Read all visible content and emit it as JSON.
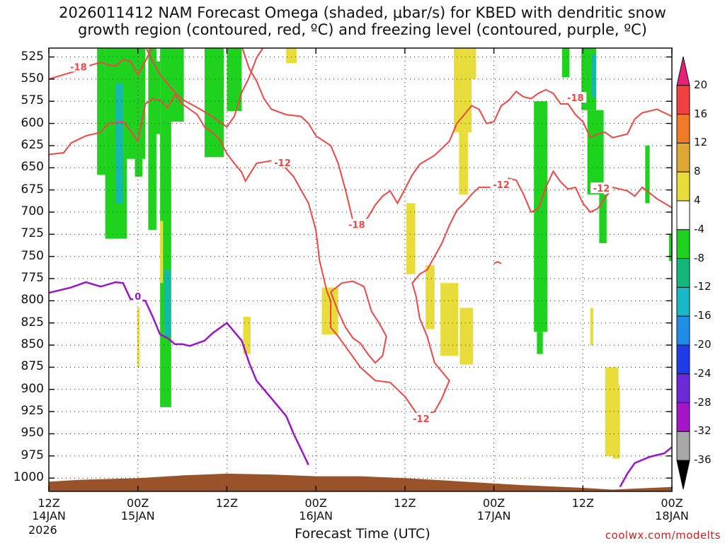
{
  "title": {
    "line1": "2026011412 NAM Forecast Omega (shaded, μbar/s) for KBED with dendritic snow",
    "line2": "growth region (contoured, red, ºC) and freezing level (contoured, purple, ºC)"
  },
  "xlabel": "Forecast Time (UTC)",
  "credit": "coolwx.com/modelts",
  "year": "2026",
  "colors": {
    "dgz": "#ef4646",
    "freezing": "#9a14c8",
    "terrain": "#9a522a",
    "up_light": "#1ed21e",
    "up_strong": "#15b8b0",
    "down_weak": "#e8dc3a"
  },
  "chart_data": {
    "type": "time-height cross-section",
    "x_range_hours": [
      0,
      84
    ],
    "y_range_hPa": [
      1015,
      515
    ],
    "yticks_hPa": [
      525,
      550,
      575,
      600,
      625,
      650,
      675,
      700,
      725,
      750,
      775,
      800,
      825,
      850,
      875,
      900,
      925,
      950,
      975,
      1000
    ],
    "xticks": [
      {
        "h": 0,
        "top": "12Z",
        "bottom": "14JAN"
      },
      {
        "h": 12,
        "top": "00Z",
        "bottom": "15JAN"
      },
      {
        "h": 24,
        "top": "12Z",
        "bottom": ""
      },
      {
        "h": 36,
        "top": "00Z",
        "bottom": "16JAN"
      },
      {
        "h": 48,
        "top": "12Z",
        "bottom": ""
      },
      {
        "h": 60,
        "top": "00Z",
        "bottom": "17JAN"
      },
      {
        "h": 72,
        "top": "12Z",
        "bottom": ""
      },
      {
        "h": 84,
        "top": "00Z",
        "bottom": "18JAN"
      }
    ],
    "colorbar": {
      "labels": [
        "20",
        "16",
        "12",
        "8",
        "4",
        "-4",
        "-8",
        "-12",
        "-16",
        "-20",
        "-24",
        "-28",
        "-32",
        "-36"
      ],
      "colors": [
        "#e8207a",
        "#f04040",
        "#f07a28",
        "#e0a830",
        "#e8dc3a",
        "#ffffff",
        "#1ed21e",
        "#12b87a",
        "#17b8c8",
        "#1e8ee8",
        "#1e3ce8",
        "#6a28d8",
        "#a514c8",
        "#a8a8a8",
        "#000000"
      ]
    },
    "contour_labels": [
      {
        "text": "-18",
        "h": 4.0,
        "p": 536
      },
      {
        "text": "-12",
        "h": 31.5,
        "p": 644
      },
      {
        "text": "-18",
        "h": 41.5,
        "p": 714
      },
      {
        "text": "-12",
        "h": 50.2,
        "p": 933
      },
      {
        "text": "-12",
        "h": 61.0,
        "p": 669
      },
      {
        "text": "-18",
        "h": 71.0,
        "p": 571
      },
      {
        "text": "-12",
        "h": 74.5,
        "p": 673
      },
      {
        "text": "0",
        "h": 12.0,
        "p": 795
      }
    ],
    "terrain_p": [
      [
        0,
        1004
      ],
      [
        4,
        1002
      ],
      [
        12,
        1000
      ],
      [
        18,
        997
      ],
      [
        24,
        995
      ],
      [
        30,
        996
      ],
      [
        36,
        998
      ],
      [
        42,
        998
      ],
      [
        48,
        1000
      ],
      [
        56,
        1004
      ],
      [
        64,
        1008
      ],
      [
        72,
        1011
      ],
      [
        76,
        1013
      ],
      [
        84,
        1010
      ]
    ],
    "freezing_level": [
      [
        [
          0,
          791
        ],
        [
          3,
          785
        ],
        [
          5,
          779
        ],
        [
          7,
          784
        ],
        [
          9,
          779
        ],
        [
          10,
          780
        ],
        [
          11,
          798
        ],
        [
          13,
          800
        ],
        [
          14,
          818
        ],
        [
          15,
          838
        ],
        [
          16,
          842
        ],
        [
          17,
          849
        ],
        [
          18,
          849
        ],
        [
          19,
          851
        ],
        [
          21,
          845
        ],
        [
          22,
          837
        ],
        [
          24,
          825
        ],
        [
          26,
          845
        ],
        [
          27,
          870
        ],
        [
          28,
          890
        ],
        [
          30,
          910
        ],
        [
          32,
          930
        ],
        [
          33,
          950
        ],
        [
          35,
          985
        ]
      ],
      [
        [
          77,
          1010
        ],
        [
          78,
          995
        ],
        [
          79,
          983
        ],
        [
          81,
          976
        ],
        [
          82,
          974
        ],
        [
          83,
          972
        ],
        [
          84,
          965
        ]
      ]
    ],
    "dgz_isotherms": [
      [
        [
          0,
          550
        ],
        [
          2,
          545
        ],
        [
          4,
          540
        ],
        [
          5,
          536
        ],
        [
          7,
          531
        ],
        [
          8,
          534
        ],
        [
          9,
          535
        ],
        [
          10,
          528
        ],
        [
          11,
          530
        ],
        [
          12,
          545
        ],
        [
          13,
          530
        ],
        [
          14,
          513
        ]
      ],
      [
        [
          0,
          635
        ],
        [
          2,
          633
        ],
        [
          3,
          622
        ],
        [
          5,
          614
        ],
        [
          7,
          610
        ],
        [
          8,
          600
        ],
        [
          10,
          598
        ],
        [
          11,
          608
        ],
        [
          12,
          620
        ],
        [
          13,
          578
        ],
        [
          14,
          572
        ],
        [
          15,
          574
        ],
        [
          16,
          582
        ],
        [
          17,
          568
        ],
        [
          18,
          578
        ],
        [
          20,
          590
        ],
        [
          21,
          604
        ],
        [
          22,
          610
        ],
        [
          23,
          618
        ],
        [
          24,
          634
        ],
        [
          25,
          645
        ],
        [
          26,
          655
        ],
        [
          26.5,
          665
        ],
        [
          28,
          645
        ],
        [
          30,
          642
        ],
        [
          31,
          642
        ],
        [
          33,
          660
        ],
        [
          35,
          690
        ],
        [
          36,
          720
        ],
        [
          36.5,
          755
        ],
        [
          37.5,
          790
        ],
        [
          38,
          800
        ],
        [
          38,
          830
        ],
        [
          39,
          840
        ],
        [
          42,
          875
        ],
        [
          44,
          890
        ],
        [
          46,
          892
        ],
        [
          48,
          908
        ],
        [
          50,
          932
        ],
        [
          52,
          925
        ],
        [
          53,
          910
        ],
        [
          54,
          890
        ],
        [
          52,
          870
        ],
        [
          51,
          840
        ],
        [
          50,
          820
        ],
        [
          49.5,
          795
        ],
        [
          49,
          780
        ],
        [
          50,
          770
        ],
        [
          51,
          765
        ],
        [
          52,
          750
        ],
        [
          53,
          735
        ],
        [
          54,
          715
        ],
        [
          55,
          698
        ],
        [
          56,
          690
        ],
        [
          57,
          680
        ],
        [
          58,
          672
        ],
        [
          60,
          672
        ],
        [
          61,
          674
        ],
        [
          62,
          662
        ],
        [
          63,
          664
        ],
        [
          64,
          680
        ],
        [
          65,
          700
        ],
        [
          66,
          696
        ],
        [
          67,
          672
        ],
        [
          68,
          654
        ],
        [
          69,
          666
        ],
        [
          70,
          674
        ],
        [
          71,
          672
        ],
        [
          72,
          690
        ],
        [
          73,
          700
        ],
        [
          74,
          696
        ],
        [
          75,
          684
        ],
        [
          76,
          672
        ],
        [
          78,
          676
        ],
        [
          79,
          682
        ],
        [
          80,
          672
        ],
        [
          82,
          685
        ],
        [
          84,
          695
        ]
      ],
      [
        [
          13,
          513
        ],
        [
          14,
          530
        ],
        [
          15,
          545
        ],
        [
          16,
          555
        ],
        [
          17,
          565
        ],
        [
          18,
          573
        ],
        [
          20,
          582
        ],
        [
          22,
          592
        ],
        [
          24,
          604
        ],
        [
          25,
          592
        ],
        [
          26,
          565
        ],
        [
          27,
          548
        ],
        [
          28,
          526
        ],
        [
          29,
          513
        ]
      ],
      [
        [
          26,
          513
        ],
        [
          27,
          538
        ],
        [
          28,
          552
        ],
        [
          29,
          572
        ],
        [
          30,
          584
        ],
        [
          32,
          590
        ],
        [
          34,
          592
        ],
        [
          35,
          600
        ],
        [
          36,
          614
        ],
        [
          38,
          625
        ],
        [
          39,
          645
        ],
        [
          40,
          675
        ],
        [
          41,
          710
        ],
        [
          42,
          716
        ],
        [
          43,
          706
        ],
        [
          44,
          692
        ],
        [
          45,
          682
        ],
        [
          46,
          676
        ],
        [
          47,
          690
        ],
        [
          48,
          674
        ],
        [
          49,
          658
        ],
        [
          50,
          646
        ],
        [
          52,
          636
        ],
        [
          54,
          620
        ],
        [
          55,
          600
        ],
        [
          56,
          590
        ],
        [
          57,
          580
        ],
        [
          58,
          584
        ],
        [
          59,
          600
        ],
        [
          60,
          598
        ],
        [
          61,
          580
        ],
        [
          62,
          574
        ],
        [
          63,
          564
        ],
        [
          64,
          570
        ],
        [
          65,
          572
        ],
        [
          66,
          566
        ],
        [
          67,
          562
        ],
        [
          68,
          566
        ],
        [
          69,
          578
        ],
        [
          70,
          578
        ],
        [
          71,
          590
        ],
        [
          72,
          598
        ],
        [
          73,
          616
        ],
        [
          74,
          612
        ],
        [
          75,
          610
        ],
        [
          76,
          616
        ],
        [
          78,
          612
        ],
        [
          79,
          595
        ],
        [
          80,
          588
        ],
        [
          82,
          584
        ],
        [
          84,
          592
        ]
      ],
      [
        [
          38,
          790
        ],
        [
          39,
          812
        ],
        [
          40,
          830
        ],
        [
          41,
          842
        ],
        [
          42,
          848
        ],
        [
          43,
          860
        ],
        [
          44,
          870
        ],
        [
          45,
          862
        ],
        [
          45.5,
          840
        ],
        [
          44.5,
          825
        ],
        [
          43.5,
          812
        ],
        [
          43,
          798
        ],
        [
          42.5,
          784
        ],
        [
          41,
          778
        ],
        [
          39.5,
          780
        ],
        [
          38,
          790
        ]
      ],
      [
        [
          60,
          758
        ],
        [
          60.5,
          756
        ],
        [
          61,
          758
        ]
      ]
    ],
    "shading": [
      {
        "level": "up_light",
        "h": [
          6.5,
          7.6
        ],
        "p": [
          510,
          658
        ]
      },
      {
        "level": "up_light",
        "h": [
          7.6,
          10.5
        ],
        "p": [
          510,
          730
        ]
      },
      {
        "level": "up_strong",
        "h": [
          9.0,
          10.0
        ],
        "p": [
          555,
          690
        ]
      },
      {
        "level": "up_light",
        "h": [
          10.0,
          13.0
        ],
        "p": [
          510,
          640
        ]
      },
      {
        "level": "up_light",
        "h": [
          11.6,
          12.6
        ],
        "p": [
          640,
          660
        ]
      },
      {
        "level": "up_light",
        "h": [
          15.0,
          16.5
        ],
        "p": [
          510,
          920
        ]
      },
      {
        "level": "up_strong",
        "h": [
          15.6,
          16.4
        ],
        "p": [
          765,
          840
        ]
      },
      {
        "level": "up_light",
        "h": [
          13.4,
          14.5
        ],
        "p": [
          510,
          720
        ]
      },
      {
        "level": "up_light",
        "h": [
          14.0,
          15.0
        ],
        "p": [
          530,
          612
        ]
      },
      {
        "level": "up_light",
        "h": [
          16.1,
          18.2
        ],
        "p": [
          510,
          598
        ]
      },
      {
        "level": "up_light",
        "h": [
          21.0,
          23.6
        ],
        "p": [
          513,
          638
        ]
      },
      {
        "level": "up_light",
        "h": [
          24.0,
          26.0
        ],
        "p": [
          513,
          586
        ]
      },
      {
        "level": "up_light",
        "h": [
          65.4,
          67.2
        ],
        "p": [
          575,
          835
        ]
      },
      {
        "level": "up_light",
        "h": [
          65.8,
          66.6
        ],
        "p": [
          835,
          860
        ]
      },
      {
        "level": "up_light",
        "h": [
          69.2,
          70.2
        ],
        "p": [
          513,
          548
        ]
      },
      {
        "level": "up_light",
        "h": [
          71.8,
          73.8
        ],
        "p": [
          513,
          585
        ]
      },
      {
        "level": "up_light",
        "h": [
          72.6,
          74.8
        ],
        "p": [
          585,
          680
        ]
      },
      {
        "level": "up_light",
        "h": [
          74.2,
          75.2
        ],
        "p": [
          680,
          735
        ]
      },
      {
        "level": "up_strong",
        "h": [
          73.2,
          73.8
        ],
        "p": [
          522,
          570
        ]
      },
      {
        "level": "up_light",
        "h": [
          80.4,
          81.0
        ],
        "p": [
          625,
          690
        ]
      },
      {
        "level": "up_light",
        "h": [
          83.6,
          84.0
        ],
        "p": [
          725,
          755
        ]
      },
      {
        "level": "down_weak",
        "h": [
          32.0,
          33.4
        ],
        "p": [
          513,
          532
        ]
      },
      {
        "level": "down_weak",
        "h": [
          15.0,
          15.4
        ],
        "p": [
          710,
          780
        ]
      },
      {
        "level": "down_weak",
        "h": [
          11.9,
          12.2
        ],
        "p": [
          808,
          875
        ]
      },
      {
        "level": "down_weak",
        "h": [
          26.2,
          27.2
        ],
        "p": [
          818,
          860
        ]
      },
      {
        "level": "down_weak",
        "h": [
          36.8,
          39.0
        ],
        "p": [
          785,
          838
        ]
      },
      {
        "level": "down_weak",
        "h": [
          48.2,
          49.4
        ],
        "p": [
          690,
          770
        ]
      },
      {
        "level": "down_weak",
        "h": [
          50.8,
          52.0
        ],
        "p": [
          760,
          832
        ]
      },
      {
        "level": "down_weak",
        "h": [
          52.8,
          55.2
        ],
        "p": [
          780,
          862
        ]
      },
      {
        "level": "down_weak",
        "h": [
          55.4,
          57.2
        ],
        "p": [
          808,
          872
        ]
      },
      {
        "level": "down_weak",
        "h": [
          54.6,
          57.0
        ],
        "p": [
          513,
          610
        ]
      },
      {
        "level": "down_weak",
        "h": [
          55.3,
          56.5
        ],
        "p": [
          610,
          680
        ]
      },
      {
        "level": "down_weak",
        "h": [
          57.0,
          57.6
        ],
        "p": [
          513,
          550
        ]
      },
      {
        "level": "down_weak",
        "h": [
          73.0,
          73.4
        ],
        "p": [
          808,
          850
        ]
      },
      {
        "level": "down_weak",
        "h": [
          75.0,
          76.8
        ],
        "p": [
          875,
          975
        ]
      },
      {
        "level": "down_weak",
        "h": [
          76.0,
          77.0
        ],
        "p": [
          895,
          978
        ]
      }
    ]
  }
}
